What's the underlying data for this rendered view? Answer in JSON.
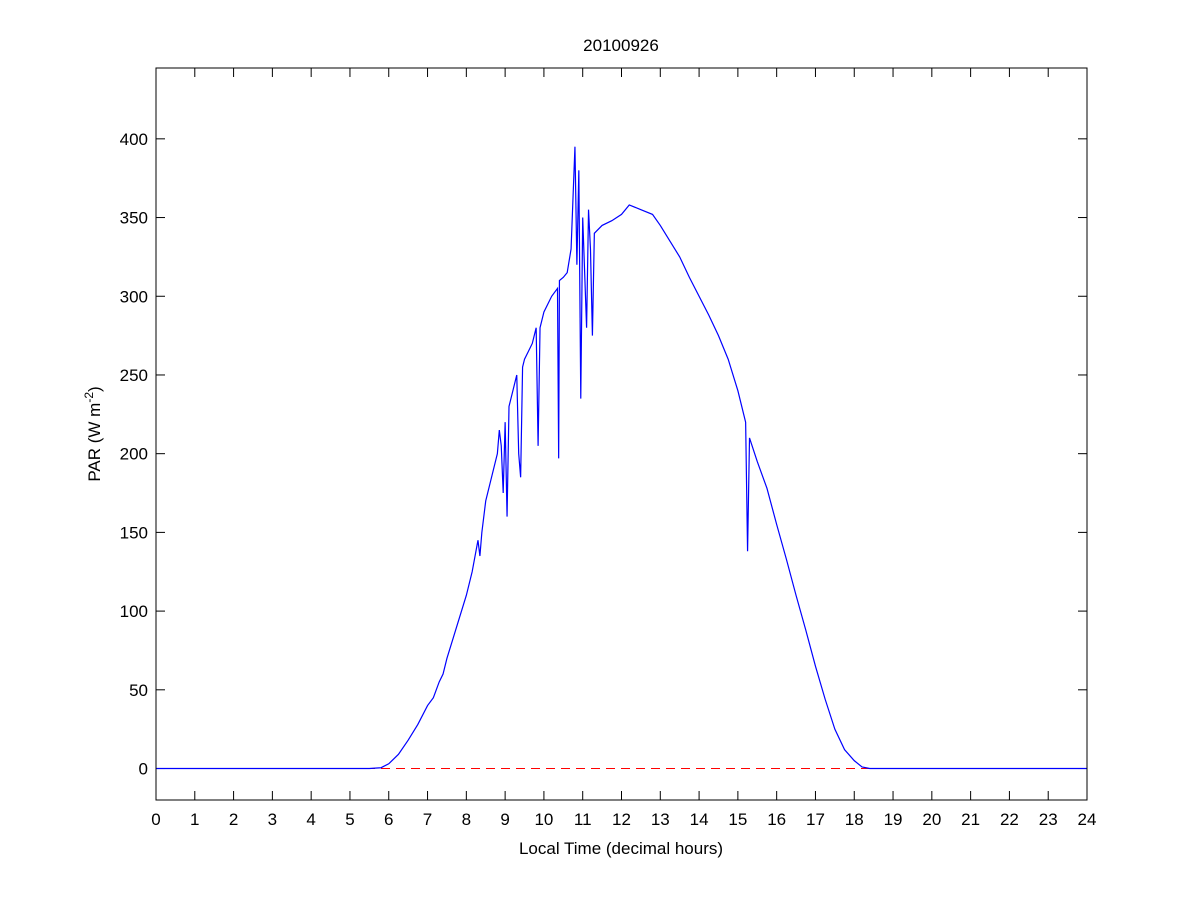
{
  "chart_data": {
    "type": "line",
    "title": "20100926",
    "xlabel": "Local Time (decimal hours)",
    "ylabel": [
      "PAR (W m",
      "-2",
      ")"
    ],
    "x": [
      0,
      1,
      2,
      3,
      4,
      5,
      5.5,
      5.8,
      6.0,
      6.25,
      6.5,
      6.75,
      7.0,
      7.15,
      7.3,
      7.4,
      7.5,
      7.75,
      8.0,
      8.15,
      8.3,
      8.35,
      8.4,
      8.5,
      8.65,
      8.8,
      8.85,
      8.9,
      8.95,
      9.0,
      9.05,
      9.1,
      9.2,
      9.3,
      9.35,
      9.4,
      9.45,
      9.5,
      9.6,
      9.7,
      9.8,
      9.85,
      9.9,
      10.0,
      10.1,
      10.2,
      10.35,
      10.38,
      10.4,
      10.5,
      10.6,
      10.7,
      10.8,
      10.85,
      10.9,
      10.95,
      11.0,
      11.1,
      11.15,
      11.2,
      11.25,
      11.3,
      11.5,
      11.75,
      12.0,
      12.2,
      12.5,
      12.8,
      13.0,
      13.25,
      13.5,
      13.75,
      14.0,
      14.25,
      14.5,
      14.75,
      15.0,
      15.2,
      15.25,
      15.3,
      15.5,
      15.75,
      16.0,
      16.25,
      16.5,
      16.75,
      17.0,
      17.25,
      17.5,
      17.75,
      18.0,
      18.2,
      18.4,
      19,
      20,
      21,
      22,
      23,
      24
    ],
    "series": [
      {
        "color": "#0000ff",
        "values": [
          0,
          0,
          0,
          0,
          0,
          0,
          0,
          0.5,
          3,
          9,
          18,
          28,
          40,
          45,
          55,
          60,
          70,
          90,
          110,
          125,
          145,
          135,
          150,
          170,
          185,
          200,
          215,
          205,
          175,
          220,
          160,
          230,
          240,
          250,
          200,
          185,
          255,
          260,
          265,
          270,
          280,
          205,
          280,
          290,
          295,
          300,
          305,
          197,
          310,
          312,
          315,
          330,
          395,
          320,
          380,
          235,
          350,
          280,
          355,
          330,
          275,
          340,
          345,
          348,
          352,
          358,
          355,
          352,
          345,
          335,
          325,
          312,
          300,
          288,
          275,
          260,
          240,
          220,
          138,
          210,
          195,
          178,
          155,
          133,
          110,
          88,
          65,
          44,
          25,
          12,
          5,
          1,
          0,
          0,
          0,
          0,
          0,
          0,
          0
        ]
      }
    ],
    "reference_line": {
      "value": 0,
      "color": "#ff0000",
      "style": "dashed"
    },
    "xlim": [
      0,
      24
    ],
    "xticks": [
      0,
      1,
      2,
      3,
      4,
      5,
      6,
      7,
      8,
      9,
      10,
      11,
      12,
      13,
      14,
      15,
      16,
      17,
      18,
      19,
      20,
      21,
      22,
      23,
      24
    ],
    "ylim": [
      -20,
      445
    ],
    "yticks": [
      0,
      50,
      100,
      150,
      200,
      250,
      300,
      350,
      400
    ],
    "grid": false
  }
}
